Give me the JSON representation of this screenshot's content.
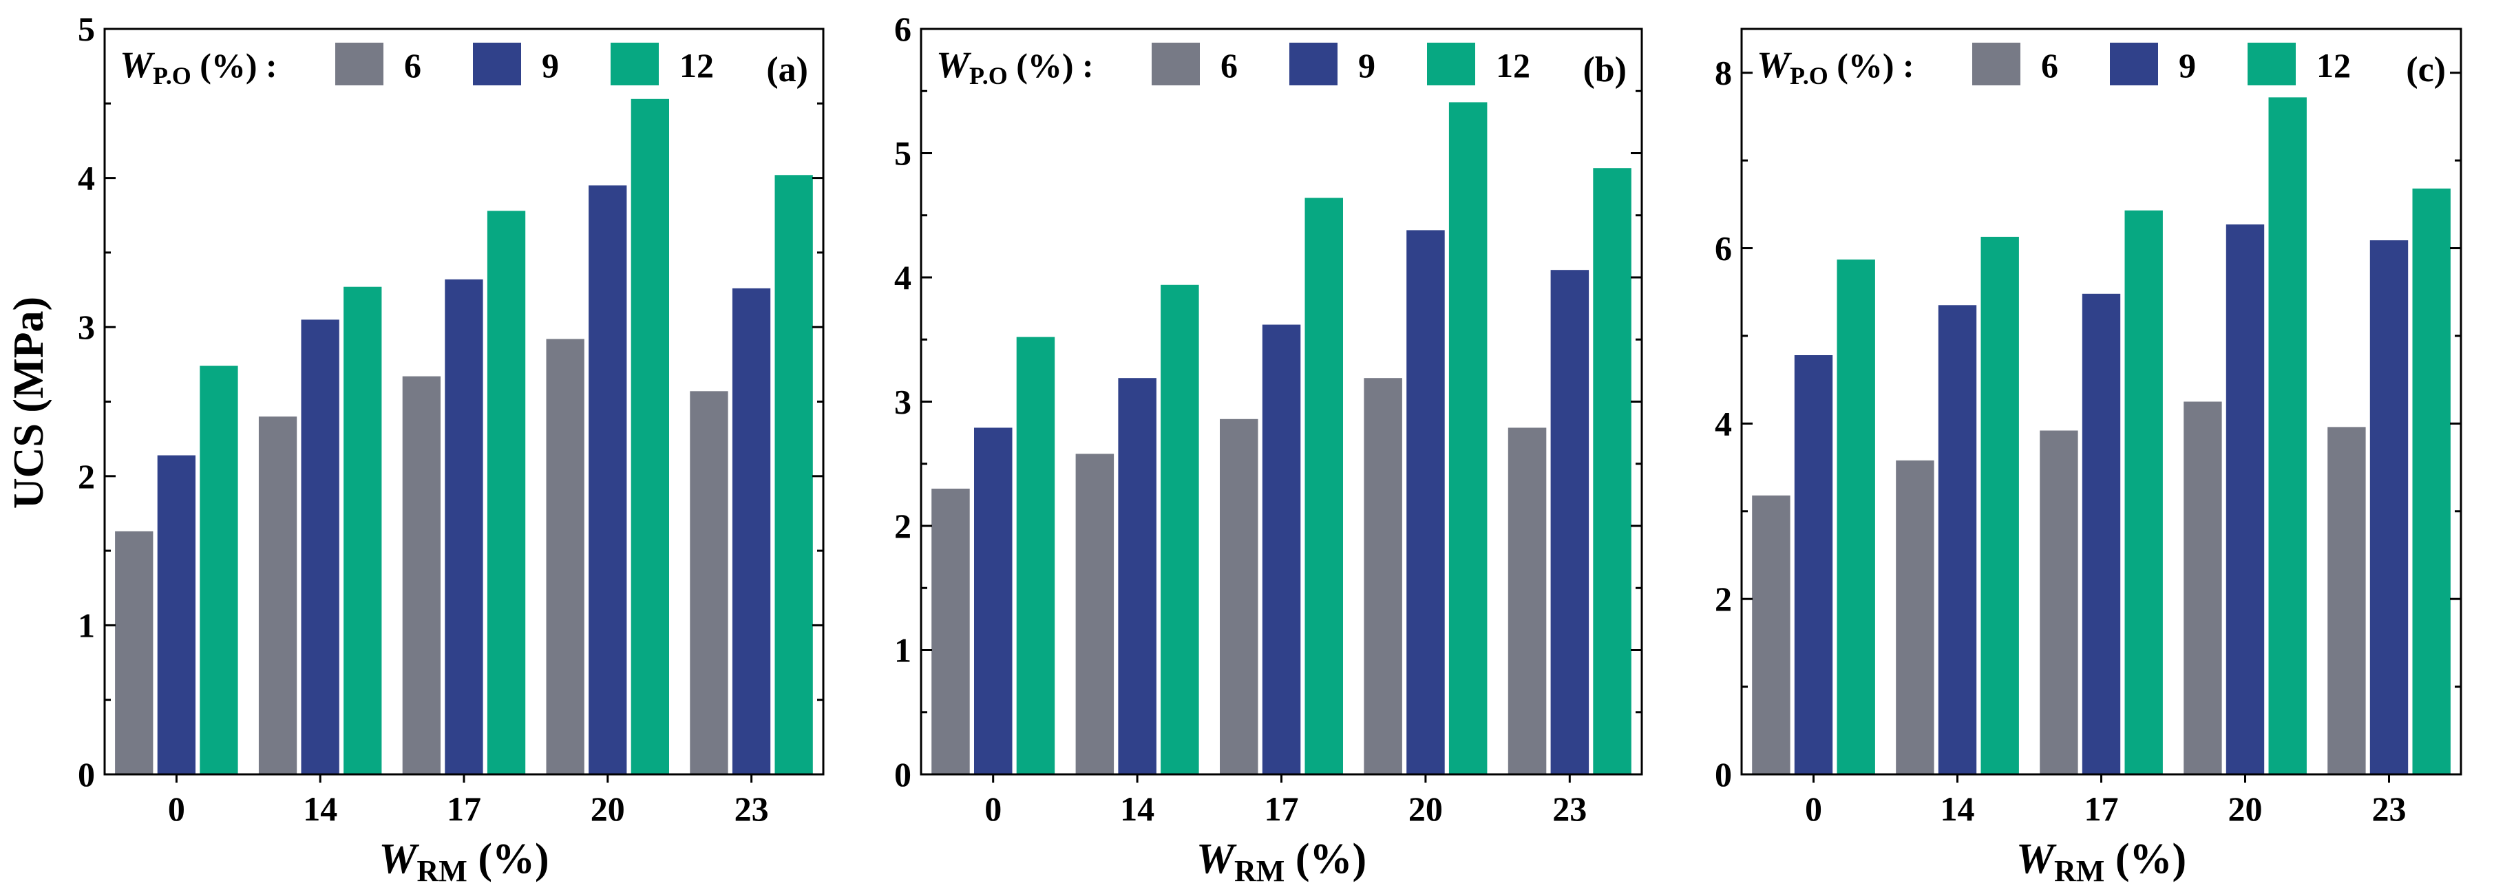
{
  "colors": {
    "series_6": "#777a86",
    "series_9": "#30418a",
    "series_12": "#07a882",
    "frame": "#000000"
  },
  "shared": {
    "ylabel": "UCS (MPa)",
    "xlabel_main": "W",
    "xlabel_sub": "RM",
    "xlabel_unit": " (%)",
    "legend_title_main": "W",
    "legend_title_sub": "P.O",
    "legend_title_unit": " (%) :"
  },
  "chart_data": [
    {
      "type": "bar",
      "panel_label": "(a)",
      "categories": [
        "0",
        "14",
        "17",
        "20",
        "23"
      ],
      "series": [
        {
          "name": "6",
          "values": [
            1.63,
            2.4,
            2.67,
            2.92,
            2.57
          ]
        },
        {
          "name": "9",
          "values": [
            2.14,
            3.05,
            3.32,
            3.95,
            3.26
          ]
        },
        {
          "name": "12",
          "values": [
            2.74,
            3.27,
            3.78,
            4.53,
            4.02
          ]
        }
      ],
      "ylim": [
        0,
        5
      ],
      "yticks": [
        0,
        1,
        2,
        3,
        4,
        5
      ],
      "legend": "top"
    },
    {
      "type": "bar",
      "panel_label": "(b)",
      "categories": [
        "0",
        "14",
        "17",
        "20",
        "23"
      ],
      "series": [
        {
          "name": "6",
          "values": [
            2.3,
            2.58,
            2.86,
            3.19,
            2.79
          ]
        },
        {
          "name": "9",
          "values": [
            2.79,
            3.19,
            3.62,
            4.38,
            4.06
          ]
        },
        {
          "name": "12",
          "values": [
            3.52,
            3.94,
            4.64,
            5.41,
            4.88
          ]
        }
      ],
      "ylim": [
        0,
        6
      ],
      "yticks": [
        0,
        1,
        2,
        3,
        4,
        5,
        6
      ],
      "legend": "top"
    },
    {
      "type": "bar",
      "panel_label": "(c)",
      "categories": [
        "0",
        "14",
        "17",
        "20",
        "23"
      ],
      "series": [
        {
          "name": "6",
          "values": [
            3.18,
            3.58,
            3.92,
            4.25,
            3.96
          ]
        },
        {
          "name": "9",
          "values": [
            4.78,
            5.35,
            5.48,
            6.27,
            6.09
          ]
        },
        {
          "name": "12",
          "values": [
            5.87,
            6.13,
            6.43,
            7.72,
            6.68
          ]
        }
      ],
      "ylim": [
        0,
        8.5
      ],
      "yticks": [
        0,
        2,
        4,
        6,
        8
      ],
      "legend": "top"
    }
  ]
}
